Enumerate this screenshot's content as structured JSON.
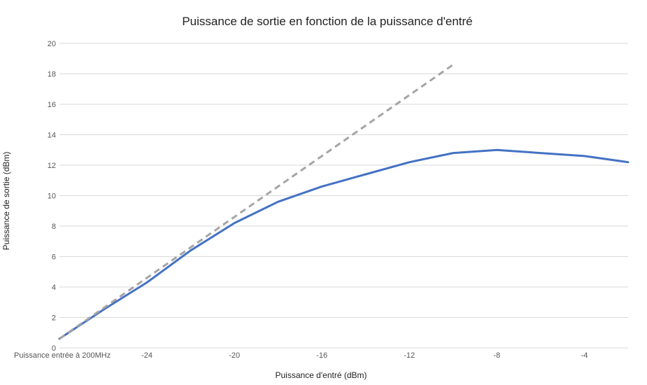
{
  "chart_data": {
    "type": "line",
    "title": "Puissance de sortie en fonction de la puissance d'entré",
    "xlabel": "Puissance d'entré (dBm)",
    "ylabel": "Puissance de sortie (dBm)",
    "xlim": [
      -28,
      -2
    ],
    "ylim": [
      0,
      20
    ],
    "grid": true,
    "x_ticks": [
      {
        "value": -28,
        "label": "Puissance entrée à 200MHz"
      },
      {
        "value": -24,
        "label": "-24"
      },
      {
        "value": -20,
        "label": "-20"
      },
      {
        "value": -16,
        "label": "-16"
      },
      {
        "value": -12,
        "label": "-12"
      },
      {
        "value": -8,
        "label": "-8"
      },
      {
        "value": -4,
        "label": "-4"
      }
    ],
    "y_ticks": [
      "0",
      "2",
      "4",
      "6",
      "8",
      "10",
      "12",
      "14",
      "16",
      "18",
      "20"
    ],
    "series": [
      {
        "style": "solid",
        "color": "#4472C4",
        "x": [
          -28,
          -26,
          -24,
          -22,
          -20,
          -18,
          -16,
          -14,
          -12,
          -10,
          -8,
          -6,
          -4,
          -2
        ],
        "y": [
          0.6,
          2.5,
          4.3,
          6.4,
          8.2,
          9.6,
          10.6,
          11.4,
          12.2,
          12.8,
          13.0,
          12.8,
          12.6,
          12.2
        ]
      },
      {
        "style": "dashed",
        "color": "#A5A5A5",
        "x": [
          -28,
          -10
        ],
        "y": [
          0.6,
          18.6
        ]
      }
    ]
  }
}
